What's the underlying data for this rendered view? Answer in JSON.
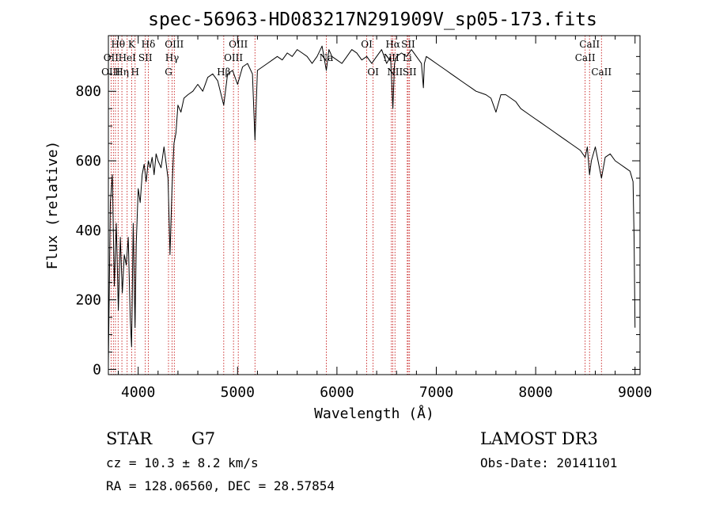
{
  "chart_data": {
    "type": "line",
    "title": "spec-56963-HD083217N291909V_sp05-173.fits",
    "xlabel": "Wavelength (Å)",
    "ylabel": "Flux (relative)",
    "xlim": [
      3700,
      9050
    ],
    "ylim": [
      -15,
      960
    ],
    "xticks": [
      4000,
      5000,
      6000,
      7000,
      8000,
      9000
    ],
    "yticks": [
      0,
      200,
      400,
      600,
      800
    ],
    "x_tick_labels": [
      "4000",
      "5000",
      "6000",
      "7000",
      "8000",
      "9000"
    ],
    "y_tick_labels": [
      "0",
      "200",
      "400",
      "600",
      "800"
    ],
    "grid": false,
    "series": [
      {
        "x": [
          3700,
          3720,
          3740,
          3760,
          3780,
          3800,
          3820,
          3840,
          3860,
          3880,
          3900,
          3920,
          3933,
          3950,
          3968,
          3980,
          4000,
          4020,
          4040,
          4060,
          4080,
          4102,
          4120,
          4140,
          4160,
          4180,
          4200,
          4230,
          4260,
          4300,
          4320,
          4340,
          4360,
          4380,
          4400,
          4430,
          4460,
          4500,
          4550,
          4600,
          4650,
          4700,
          4750,
          4800,
          4861,
          4900,
          4950,
          5000,
          5050,
          5100,
          5150,
          5175,
          5200,
          5250,
          5300,
          5350,
          5400,
          5450,
          5500,
          5550,
          5600,
          5650,
          5700,
          5750,
          5800,
          5850,
          5893,
          5920,
          5950,
          6000,
          6050,
          6100,
          6150,
          6200,
          6250,
          6300,
          6350,
          6400,
          6450,
          6500,
          6540,
          6563,
          6580,
          6600,
          6650,
          6700,
          6750,
          6800,
          6850,
          6870,
          6880,
          6900,
          6950,
          7000,
          7050,
          7100,
          7150,
          7200,
          7250,
          7300,
          7350,
          7400,
          7450,
          7500,
          7550,
          7600,
          7620,
          7650,
          7700,
          7750,
          7800,
          7850,
          7900,
          7950,
          8000,
          8050,
          8100,
          8150,
          8200,
          8250,
          8300,
          8350,
          8400,
          8450,
          8498,
          8520,
          8542,
          8560,
          8600,
          8662,
          8700,
          8750,
          8800,
          8850,
          8900,
          8950,
          8980,
          8990,
          9000
        ],
        "y": [
          20,
          480,
          560,
          240,
          420,
          170,
          380,
          220,
          330,
          300,
          380,
          150,
          65,
          420,
          120,
          360,
          520,
          480,
          560,
          590,
          540,
          600,
          580,
          610,
          560,
          620,
          600,
          580,
          640,
          550,
          330,
          520,
          650,
          680,
          760,
          740,
          780,
          790,
          800,
          820,
          800,
          840,
          850,
          830,
          760,
          850,
          860,
          820,
          870,
          880,
          850,
          660,
          860,
          870,
          880,
          890,
          900,
          890,
          910,
          900,
          920,
          910,
          900,
          880,
          900,
          930,
          860,
          920,
          900,
          890,
          880,
          900,
          920,
          910,
          890,
          900,
          880,
          900,
          920,
          880,
          900,
          750,
          880,
          900,
          910,
          900,
          920,
          900,
          880,
          810,
          880,
          900,
          890,
          880,
          870,
          860,
          850,
          840,
          830,
          820,
          810,
          800,
          795,
          790,
          780,
          740,
          760,
          790,
          790,
          780,
          770,
          750,
          740,
          730,
          720,
          710,
          700,
          690,
          680,
          670,
          660,
          650,
          640,
          630,
          610,
          640,
          560,
          600,
          640,
          550,
          610,
          620,
          600,
          590,
          580,
          570,
          540,
          380,
          120
        ]
      }
    ],
    "line_labels": [
      {
        "label": "Hθ",
        "wave": 3798,
        "row": 1
      },
      {
        "label": "OII",
        "wave": 3727,
        "row": 2
      },
      {
        "label": "OIII",
        "wave": 3725,
        "row": 3
      },
      {
        "label": "Hη",
        "wave": 3836,
        "row": 3
      },
      {
        "label": "K",
        "wave": 3934,
        "row": 1
      },
      {
        "label": "HeI",
        "wave": 3889,
        "row": 2
      },
      {
        "label": "H",
        "wave": 3969,
        "row": 3
      },
      {
        "label": "Hδ",
        "wave": 4102,
        "row": 1
      },
      {
        "label": "SII",
        "wave": 4072,
        "row": 2
      },
      {
        "label": "OIII",
        "wave": 4363,
        "row": 1
      },
      {
        "label": "Hγ",
        "wave": 4341,
        "row": 2
      },
      {
        "label": "G",
        "wave": 4305,
        "row": 3
      },
      {
        "label": "OIII",
        "wave": 5007,
        "row": 1
      },
      {
        "label": "OIII",
        "wave": 4959,
        "row": 2
      },
      {
        "label": "Hβ",
        "wave": 4861,
        "row": 3
      },
      {
        "label": "Na",
        "wave": 5893,
        "row": 2
      },
      {
        "label": "OI",
        "wave": 6300,
        "row": 1
      },
      {
        "label": "OI",
        "wave": 6364,
        "row": 3
      },
      {
        "label": "Hα",
        "wave": 6563,
        "row": 1
      },
      {
        "label": "NII",
        "wave": 6548,
        "row": 2
      },
      {
        "label": "NII",
        "wave": 6584,
        "row": 3
      },
      {
        "label": "SII",
        "wave": 6717,
        "row": 1
      },
      {
        "label": "Li",
        "wave": 6708,
        "row": 2
      },
      {
        "label": "SII",
        "wave": 6731,
        "row": 3
      },
      {
        "label": "CaII",
        "wave": 8542,
        "row": 1
      },
      {
        "label": "CaII",
        "wave": 8498,
        "row": 2
      },
      {
        "label": "CaII",
        "wave": 8662,
        "row": 3
      }
    ],
    "line_markers": [
      3727,
      3750,
      3771,
      3798,
      3836,
      3889,
      3934,
      3969,
      4072,
      4102,
      4305,
      4341,
      4363,
      4861,
      4959,
      5007,
      5175,
      5893,
      6300,
      6364,
      6548,
      6563,
      6584,
      6708,
      6717,
      6731,
      8498,
      8542,
      8662
    ],
    "line_marker_color": "#c00000"
  },
  "info": {
    "object_class": "STAR",
    "subclass": "G7",
    "survey": "LAMOST DR3",
    "redshift_text": "cz = 10.3 ± 8.2 km/s",
    "obs_date_text": "Obs-Date: 20141101",
    "coords_text": "RA = 128.06560, DEC =  28.57854"
  }
}
